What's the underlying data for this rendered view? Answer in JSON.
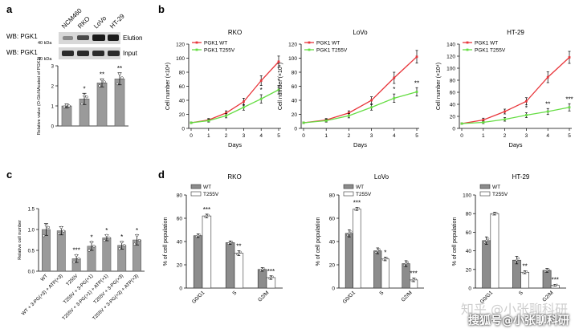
{
  "panel_labels": {
    "a": "a",
    "b": "b",
    "c": "c",
    "d": "d"
  },
  "blot": {
    "lanes": [
      "NCM460",
      "RKO",
      "LoVo",
      "HT-29"
    ],
    "rows": [
      {
        "left": "WB: PGK1",
        "kda": "40 kDa",
        "right": "Elution"
      },
      {
        "left": "WB: PGK1",
        "kda": "40 kDa",
        "right": "Input"
      }
    ]
  },
  "watermarks": {
    "zhihu": "知乎 @小张聊科研",
    "sohu": "搜狐号@小张聊科研"
  },
  "chart_data": [
    {
      "id": "a_bar",
      "type": "bar",
      "ylabel": "Relative value (O-GlcNAcated of PGK1)",
      "categories": [
        "NCM460",
        "RKO",
        "LoVo",
        "HT-29"
      ],
      "values": [
        1.0,
        1.35,
        2.15,
        2.35
      ],
      "errors": [
        0.1,
        0.28,
        0.2,
        0.3
      ],
      "points": [
        [
          0.95,
          1.05,
          1.0
        ],
        [
          1.1,
          1.5,
          1.45
        ],
        [
          2.0,
          2.3,
          2.2
        ],
        [
          2.1,
          2.6,
          2.4
        ]
      ],
      "significance": [
        "",
        "*",
        "**",
        "**"
      ],
      "ylim": [
        0,
        3
      ],
      "yticks": [
        "0",
        "1",
        "2",
        "3"
      ]
    },
    {
      "id": "b_rko",
      "type": "line",
      "title": "RKO",
      "xlabel": "Days",
      "ylabel": "Cell number (×10⁴)",
      "x": [
        0,
        1,
        2,
        3,
        4,
        5
      ],
      "ylim": [
        0,
        120
      ],
      "yticks": [
        "0",
        "20",
        "40",
        "60",
        "80",
        "100",
        "120"
      ],
      "legend": "top-left",
      "series": [
        {
          "name": "PGK1 WT",
          "color": "#e8363b",
          "values": [
            8,
            12,
            22,
            38,
            68,
            95
          ],
          "errors": [
            1,
            2,
            3,
            5,
            7,
            8
          ]
        },
        {
          "name": "PGK1 T255V",
          "color": "#66dd44",
          "values": [
            8,
            11,
            18,
            30,
            42,
            55
          ],
          "errors": [
            1,
            2,
            3,
            4,
            6,
            6
          ]
        }
      ],
      "significance": [
        "",
        "",
        "",
        "",
        "*",
        "*"
      ]
    },
    {
      "id": "b_lovo",
      "type": "line",
      "title": "LoVo",
      "xlabel": "Days",
      "ylabel": "Cell number (×10⁴)",
      "x": [
        0,
        1,
        2,
        3,
        4,
        5
      ],
      "ylim": [
        0,
        120
      ],
      "yticks": [
        "0",
        "20",
        "40",
        "60",
        "80",
        "100",
        "120"
      ],
      "legend": "top-left",
      "series": [
        {
          "name": "PGK1 WT",
          "color": "#e8363b",
          "values": [
            8,
            12,
            22,
            40,
            72,
            102
          ],
          "errors": [
            1,
            2,
            3,
            5,
            8,
            9
          ]
        },
        {
          "name": "PGK1 T255V",
          "color": "#66dd44",
          "values": [
            8,
            11,
            18,
            30,
            43,
            52
          ],
          "errors": [
            1,
            2,
            3,
            4,
            6,
            6
          ]
        }
      ],
      "significance": [
        "",
        "",
        "",
        "",
        "*",
        "**"
      ]
    },
    {
      "id": "b_ht29",
      "type": "line",
      "title": "HT-29",
      "xlabel": "Days",
      "ylabel": "Cell number (×10⁴)",
      "x": [
        0,
        1,
        2,
        3,
        4,
        5
      ],
      "ylim": [
        0,
        140
      ],
      "yticks": [
        "0",
        "20",
        "40",
        "60",
        "80",
        "100",
        "120",
        "140"
      ],
      "legend": "top-left",
      "series": [
        {
          "name": "PGK1 WT",
          "color": "#e8363b",
          "values": [
            8,
            14,
            28,
            45,
            85,
            118
          ],
          "errors": [
            1,
            3,
            4,
            6,
            9,
            10
          ]
        },
        {
          "name": "PGK1 T255V",
          "color": "#66dd44",
          "values": [
            8,
            10,
            15,
            22,
            28,
            35
          ],
          "errors": [
            1,
            2,
            3,
            4,
            5,
            6
          ]
        }
      ],
      "significance": [
        "",
        "",
        "",
        "*",
        "**",
        "***"
      ]
    },
    {
      "id": "c_bar",
      "type": "bar",
      "ylabel": "Relative cell number",
      "categories": [
        "WT",
        "WT + 3-PG(×3) + ATP(×3)",
        "T255V",
        "T255V + 3-PG(×1)",
        "T255V + 3-PG(×1) + ATP(×1)",
        "T255V + 3-PG(×3)",
        "T255V + 3-PG(×3) + ATP(×3)"
      ],
      "values": [
        1.0,
        0.97,
        0.3,
        0.6,
        0.8,
        0.62,
        0.75
      ],
      "errors": [
        0.14,
        0.1,
        0.09,
        0.1,
        0.07,
        0.09,
        0.12
      ],
      "points": [
        [
          0.85,
          1.1,
          1.05
        ],
        [
          0.9,
          1.05,
          0.96
        ],
        [
          0.22,
          0.38,
          0.3
        ],
        [
          0.5,
          0.7,
          0.6
        ],
        [
          0.74,
          0.86,
          0.8
        ],
        [
          0.54,
          0.7,
          0.62
        ],
        [
          0.65,
          0.86,
          0.74
        ]
      ],
      "significance": [
        "",
        "",
        "***",
        "*",
        "*",
        "*",
        "*"
      ],
      "ylim": [
        0,
        1.5
      ],
      "yticks": [
        "0.0",
        "0.5",
        "1.0",
        "1.5"
      ]
    },
    {
      "id": "d_rko",
      "type": "bar",
      "title": "RKO",
      "ylabel": "% of cell population",
      "categories": [
        "G0/G1",
        "S",
        "G2/M"
      ],
      "ylim": [
        0,
        80
      ],
      "yticks": [
        "0",
        "20",
        "40",
        "60",
        "80"
      ],
      "legend": "top-left",
      "series": [
        {
          "name": "WT",
          "color": "#8c8c8c",
          "values": [
            45,
            39,
            16
          ],
          "errors": [
            1.5,
            1.5,
            1.5
          ]
        },
        {
          "name": "T255V",
          "color": "#ffffff",
          "values": [
            62,
            30,
            9
          ],
          "errors": [
            1.5,
            2.0,
            1.5
          ]
        }
      ],
      "significance": [
        "***",
        "**",
        "***"
      ]
    },
    {
      "id": "d_lovo",
      "type": "bar",
      "title": "LoVo",
      "ylabel": "% of cell population",
      "categories": [
        "G0/G1",
        "S",
        "G2/M"
      ],
      "ylim": [
        0,
        80
      ],
      "yticks": [
        "0",
        "20",
        "40",
        "60",
        "80"
      ],
      "legend": "top-left",
      "series": [
        {
          "name": "WT",
          "color": "#8c8c8c",
          "values": [
            47,
            32,
            21
          ],
          "errors": [
            3,
            2.5,
            2.5
          ]
        },
        {
          "name": "T255V",
          "color": "#ffffff",
          "values": [
            68,
            25,
            7
          ],
          "errors": [
            1.2,
            1.5,
            1.5
          ]
        }
      ],
      "significance": [
        "***",
        "*",
        "***"
      ]
    },
    {
      "id": "d_ht29",
      "type": "bar",
      "title": "HT-29",
      "ylabel": "% of cell population",
      "categories": [
        "G0/G1",
        "S",
        "G2/M"
      ],
      "ylim": [
        0,
        100
      ],
      "yticks": [
        "0",
        "20",
        "40",
        "60",
        "80",
        "100"
      ],
      "legend": "top-left",
      "series": [
        {
          "name": "WT",
          "color": "#8c8c8c",
          "values": [
            51,
            30,
            19
          ],
          "errors": [
            4,
            4,
            2
          ]
        },
        {
          "name": "T255V",
          "color": "#ffffff",
          "values": [
            80,
            17,
            3
          ],
          "errors": [
            1.5,
            1.5,
            1
          ]
        }
      ],
      "significance": [
        "",
        "**",
        "***"
      ]
    }
  ]
}
